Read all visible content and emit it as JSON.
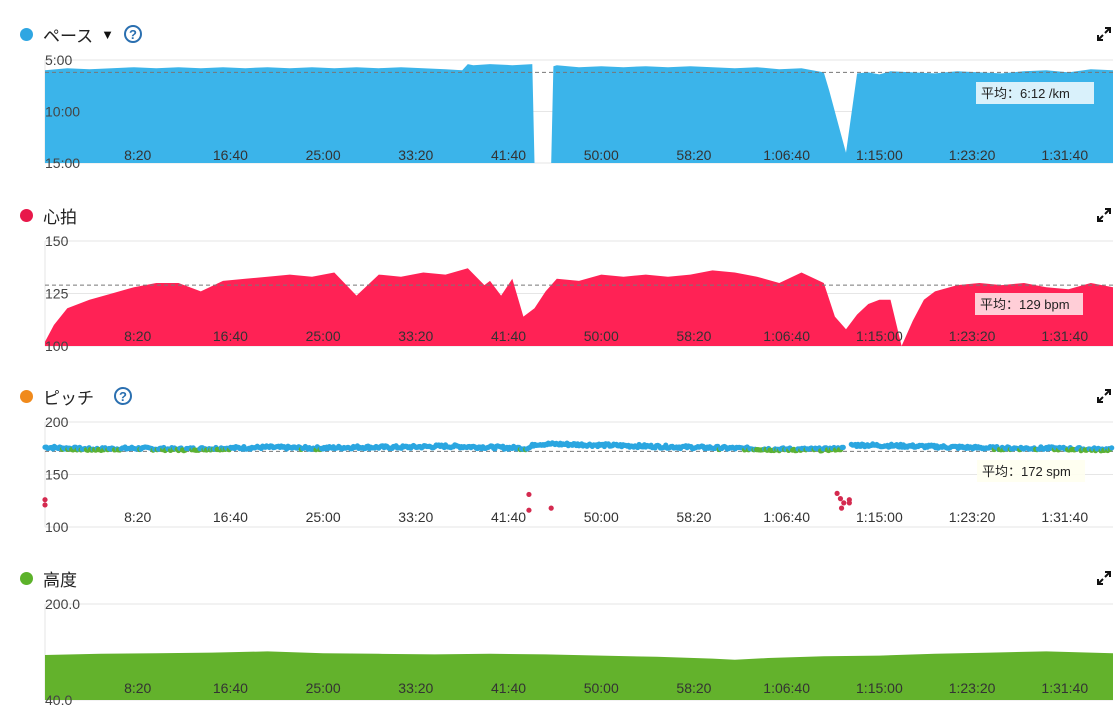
{
  "icons": {
    "expand": "expand-icon",
    "help": "help-icon",
    "dropdown": "caret-down-icon"
  },
  "chart_data": [
    {
      "type": "area",
      "title": "ペース",
      "color": "#3bb4ea",
      "y_ticks": [
        "5:00",
        "10:00",
        "15:00"
      ],
      "ylim": [
        5,
        15
      ],
      "y_inverted": true,
      "x_ticks": [
        "8:20",
        "16:40",
        "25:00",
        "33:20",
        "41:40",
        "50:00",
        "58:20",
        "1:06:40",
        "1:15:00",
        "1:23:20",
        "1:31:40"
      ],
      "average_label": "平均：6:12 /km",
      "average_value": 6.2,
      "x": [
        0,
        2,
        4,
        6,
        8,
        10,
        12,
        14,
        16,
        18,
        20,
        22,
        24,
        26,
        28,
        30,
        32,
        34,
        36,
        37.5,
        38,
        38.5,
        40,
        42,
        43.8,
        44,
        44.2,
        45.5,
        45.7,
        46,
        48,
        50,
        52,
        54,
        56,
        58,
        60,
        62,
        64,
        66,
        68,
        70,
        70.5,
        71.5,
        72,
        73,
        74,
        75,
        76,
        78,
        80,
        82,
        84,
        86,
        88,
        90,
        92,
        94,
        96
      ],
      "values": [
        6.0,
        5.8,
        5.9,
        5.8,
        5.7,
        5.8,
        5.7,
        5.8,
        5.7,
        5.8,
        5.7,
        5.8,
        5.7,
        5.8,
        5.7,
        5.8,
        5.7,
        5.8,
        5.9,
        6.0,
        5.4,
        5.5,
        5.4,
        5.5,
        5.4,
        15,
        15,
        15,
        5.6,
        5.5,
        5.7,
        5.6,
        5.7,
        5.6,
        5.7,
        5.6,
        5.7,
        5.8,
        5.7,
        5.9,
        5.8,
        6.2,
        8.0,
        12.0,
        14.0,
        6.3,
        6.2,
        6.4,
        6.1,
        6.2,
        6.3,
        6.1,
        6.2,
        6.3,
        6.1,
        6.0,
        6.2,
        5.9,
        6.0
      ]
    },
    {
      "type": "area",
      "title": "心拍",
      "color": "#ff2255",
      "y_ticks": [
        "150",
        "125",
        "100"
      ],
      "ylim": [
        100,
        150
      ],
      "x_ticks": [
        "8:20",
        "16:40",
        "25:00",
        "33:20",
        "41:40",
        "50:00",
        "58:20",
        "1:06:40",
        "1:15:00",
        "1:23:20",
        "1:31:40"
      ],
      "average_label": "平均：129 bpm",
      "average_value": 129,
      "x": [
        0,
        0.8,
        2,
        4,
        6,
        8,
        10,
        12,
        14,
        16,
        18,
        20,
        22,
        24,
        26,
        28,
        30,
        32,
        34,
        36,
        38,
        39.5,
        40,
        41,
        42,
        43,
        44,
        45,
        46,
        48,
        50,
        52,
        54,
        56,
        58,
        60,
        62,
        64,
        66,
        68,
        70,
        71,
        72,
        73,
        74,
        75,
        76,
        77,
        78,
        79,
        80,
        82,
        84,
        86,
        88,
        90,
        92,
        94,
        96
      ],
      "values": [
        102,
        110,
        118,
        122,
        125,
        128,
        130,
        130,
        126,
        131,
        132,
        133,
        134,
        133,
        135,
        124,
        134,
        133,
        135,
        134,
        137,
        129,
        131,
        124,
        132,
        114,
        118,
        126,
        132,
        131,
        134,
        133,
        134,
        133,
        134,
        136,
        135,
        133,
        130,
        135,
        130,
        114,
        108,
        115,
        120,
        122,
        122,
        100,
        112,
        122,
        126,
        129,
        130,
        129,
        130,
        128,
        127,
        130,
        128
      ]
    },
    {
      "type": "scatter",
      "title": "ピッチ",
      "y_ticks": [
        "200",
        "150",
        "100"
      ],
      "ylim": [
        100,
        200
      ],
      "x_ticks": [
        "8:20",
        "16:40",
        "25:00",
        "33:20",
        "41:40",
        "50:00",
        "58:20",
        "1:06:40",
        "1:15:00",
        "1:23:20",
        "1:31:40"
      ],
      "average_label": "平均：172 spm",
      "average_value": 172,
      "line_x": [
        0,
        4,
        8,
        12,
        16,
        20,
        24,
        28,
        32,
        36,
        40,
        43.5,
        44,
        46,
        50,
        54,
        58,
        62,
        66,
        70,
        72,
        72.5,
        74,
        78,
        82,
        86,
        90,
        94,
        96
      ],
      "line_values": [
        176,
        174,
        175,
        174,
        175,
        176,
        175,
        176,
        176,
        177,
        176,
        175,
        179,
        179,
        178,
        177,
        176,
        175,
        174,
        174,
        175,
        178,
        178,
        177,
        176,
        175,
        175,
        174,
        174
      ],
      "outliers_x": [
        0,
        0,
        43.5,
        43.5,
        45.5,
        71.2,
        71.5,
        71.8,
        72.3,
        72.3,
        71.6
      ],
      "outliers_y": [
        126,
        121,
        131,
        116,
        118,
        132,
        127,
        123,
        126,
        123,
        118
      ],
      "series_colors": {
        "fast": "#2ba6e0",
        "slow": "#5cb133",
        "outlier": "#d42a4f"
      }
    },
    {
      "type": "area",
      "title": "高度",
      "color": "#63b22c",
      "y_ticks": [
        "200.0",
        "40.0"
      ],
      "ylim": [
        40,
        200
      ],
      "x_ticks": [
        "8:20",
        "16:40",
        "25:00",
        "33:20",
        "41:40",
        "50:00",
        "58:20",
        "1:06:40",
        "1:15:00",
        "1:23:20",
        "1:31:40"
      ],
      "x": [
        0,
        5,
        10,
        15,
        20,
        25,
        30,
        35,
        40,
        45,
        50,
        55,
        60,
        62,
        65,
        70,
        75,
        80,
        85,
        90,
        96
      ],
      "values": [
        115,
        117,
        118,
        119,
        121,
        118,
        117,
        116,
        117,
        116,
        114,
        112,
        109,
        107,
        110,
        113,
        114,
        117,
        119,
        121,
        118
      ]
    }
  ]
}
